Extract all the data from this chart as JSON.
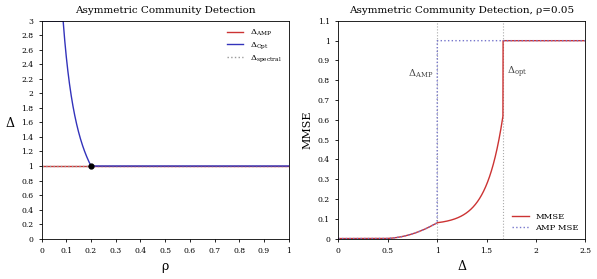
{
  "left_title": "Asymmetric Community Detection",
  "right_title": "Asymmetric Community Detection, ρ=0.05",
  "left_xlabel": "ρ",
  "left_ylabel": "Δ",
  "right_xlabel": "Δ",
  "right_ylabel": "MMSE",
  "left_xlim": [
    0,
    1
  ],
  "left_ylim": [
    0,
    3
  ],
  "right_xlim": [
    0,
    2.5
  ],
  "right_ylim": [
    0,
    1.1
  ],
  "delta_AMP_color": "#cc3333",
  "delta_opt_color": "#3333bb",
  "delta_spectral_color": "#999999",
  "mmse_color": "#cc3333",
  "amp_mse_color": "#7777cc",
  "delta_AMP_horizontal": 1.0,
  "delta_spectral_value": 1.0,
  "rho_fixed": 0.05,
  "delta_AMP_vertical": 1.0,
  "delta_opt_vertical": 1.666,
  "intersection_rho": 0.2,
  "intersection_delta": 1.0,
  "background_color": "#ffffff",
  "font_family": "DejaVu Serif",
  "vline_color": "#aaaaaa"
}
